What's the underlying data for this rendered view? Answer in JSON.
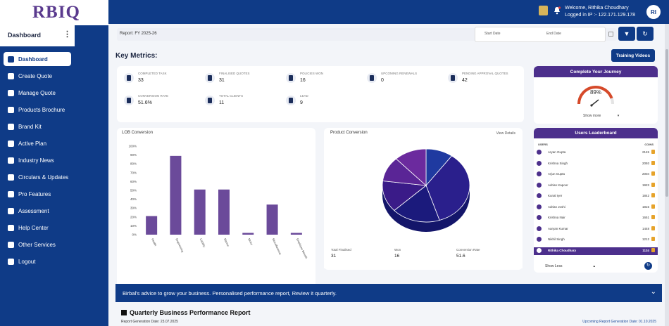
{
  "brand": {
    "logo": "RBIQ"
  },
  "sidebar": {
    "header": "Dashboard",
    "items": [
      {
        "label": "Dashboard",
        "icon": "home-icon"
      },
      {
        "label": "Create Quote",
        "icon": "document-icon"
      },
      {
        "label": "Manage Quote",
        "icon": "edit-document-icon"
      },
      {
        "label": "Products Brochure",
        "icon": "brochure-icon"
      },
      {
        "label": "Brand Kit",
        "icon": "palette-icon"
      },
      {
        "label": "Active Plan",
        "icon": "target-icon"
      },
      {
        "label": "Industry News",
        "icon": "news-icon"
      },
      {
        "label": "Circulars & Updates",
        "icon": "refresh-icon"
      },
      {
        "label": "Pro Features",
        "icon": "star-icon"
      },
      {
        "label": "Assessment",
        "icon": "clipboard-icon"
      },
      {
        "label": "Help Center",
        "icon": "globe-icon"
      },
      {
        "label": "Other Services",
        "icon": "grid-icon"
      },
      {
        "label": "Logout",
        "icon": "logout-icon"
      }
    ]
  },
  "header": {
    "welcome": "Welcome, Rithika Choudhary",
    "ip": "Logged in IP :- 122.171.129.178",
    "avatar": "RI"
  },
  "toolbar": {
    "report": "Report: FY 2025-26",
    "start_date": "Start Date",
    "end_date": "End Date",
    "filter_icon": "▼",
    "refresh_icon": "↻"
  },
  "key_metrics": {
    "title": "Key Metrics:",
    "training_label": "Training Videos",
    "items": [
      {
        "label": "COMPLETED TASK",
        "value": "33"
      },
      {
        "label": "FINALISED QUOTES",
        "value": "31"
      },
      {
        "label": "POLICIES WON",
        "value": "16"
      },
      {
        "label": "UPCOMING RENEWALS",
        "value": "0"
      },
      {
        "label": "PENDING APPROVAL QUOTES",
        "value": "42"
      },
      {
        "label": "CONVERSION RATE",
        "value": "51.6%"
      },
      {
        "label": "TOTAL CLIENTS",
        "value": "11"
      },
      {
        "label": "LEAD",
        "value": "9"
      }
    ]
  },
  "lob": {
    "title": "LOB Conversion",
    "chart_data": {
      "type": "bar",
      "categories": [
        "Health",
        "Engineering",
        "Liability",
        "Marine",
        "Motor",
        "Miscellaneous",
        "Employee Benefit"
      ],
      "values": [
        21,
        89,
        51,
        51,
        2,
        34,
        2
      ],
      "ylim": [
        0,
        100
      ],
      "yticks": [
        "0%",
        "10%",
        "20%",
        "30%",
        "40%",
        "50%",
        "60%",
        "70%",
        "80%",
        "90%",
        "100%"
      ]
    }
  },
  "product": {
    "title": "Product Conversion",
    "view_details": "View Details",
    "chart_data": {
      "type": "pie",
      "slices": [
        {
          "value": 10,
          "color": "#1f3aa0"
        },
        {
          "value": 35,
          "color": "#2a1f8c"
        },
        {
          "value": 18,
          "color": "#1b1a7c"
        },
        {
          "value": 14,
          "color": "#3a1b88"
        },
        {
          "value": 11,
          "color": "#5a2596"
        },
        {
          "value": 12,
          "color": "#6b2a9e"
        }
      ]
    },
    "footer": [
      {
        "label": "Total Finalised",
        "value": "31"
      },
      {
        "label": "Won",
        "value": "16"
      },
      {
        "label": "Conversion Rate",
        "value": "51.6"
      }
    ]
  },
  "journey": {
    "title": "Complete Your Journey",
    "percent": "89%",
    "percent_value": 0.89,
    "show_more": "Show more"
  },
  "leaderboard": {
    "title": "Users Leaderboard",
    "col_user": "USERS",
    "col_score": "COINS",
    "rows": [
      {
        "name": "Aryan Gupta",
        "coins": "2145"
      },
      {
        "name": "Krishna Singh",
        "coins": "2093"
      },
      {
        "name": "Arjun Gupta",
        "coins": "2004"
      },
      {
        "name": "Adrian Kapoor",
        "coins": "1923"
      },
      {
        "name": "Kunal Iyer",
        "coins": "1842"
      },
      {
        "name": "Adrian Joshi",
        "coins": "1815"
      },
      {
        "name": "Krishna Nair",
        "coins": "1651"
      },
      {
        "name": "Aaryan Kumar",
        "coins": "1448"
      },
      {
        "name": "Nikhil Singh",
        "coins": "1212"
      },
      {
        "name": "Rithika Choudhary",
        "coins": "1134"
      }
    ],
    "show_less": "Show Less"
  },
  "advice": {
    "text": "Birbal's advice to grow your business. Personalised performance report, Review it quarterly."
  },
  "report_section": {
    "title": "Quarterly Business Performance Report",
    "generation": "Report Generation Date: 23.07.2025",
    "upcoming": "Upcoming Report Generation Date: 01.10.2025"
  },
  "colors": {
    "primary": "#0f3b87",
    "purple": "#4c2f8c",
    "bar": "#6b4a9a"
  }
}
